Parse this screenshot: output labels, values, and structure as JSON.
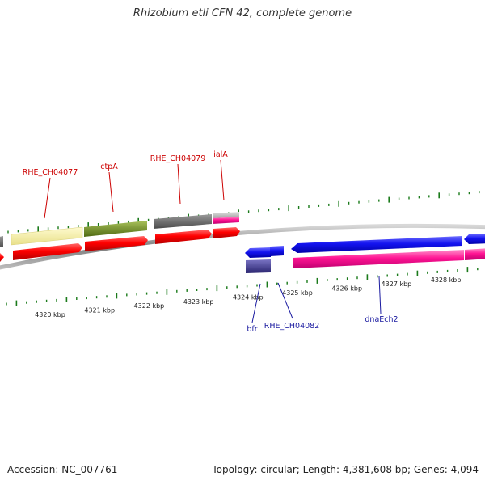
{
  "title": "Rhizobium etli CFN 42, complete genome",
  "footer": {
    "accession": "Accession: NC_007761",
    "summary": "Topology: circular; Length: 4,381,608 bp; Genes: 4,094"
  },
  "colors": {
    "backbone": "#8a8a8a",
    "tick": "#1a7a1a",
    "forward_label": "#cc0000",
    "reverse_label": "#1a1aa0",
    "cds": "#ff0000",
    "trna": "#ff1493",
    "reverse_cds": "#1010ee"
  },
  "ruler": {
    "unit": "kbp",
    "labels": [
      "4320 kbp",
      "4321 kbp",
      "4322 kbp",
      "4323 kbp",
      "4324 kbp",
      "4325 kbp",
      "4326 kbp",
      "4327 kbp",
      "4328 kbp"
    ]
  },
  "forward_labels": [
    "RHE_CH04077",
    "ctpA",
    "RHE_CH04079",
    "ialA"
  ],
  "reverse_labels": [
    "bfr",
    "RHE_CH04082",
    "dnaEch2"
  ]
}
